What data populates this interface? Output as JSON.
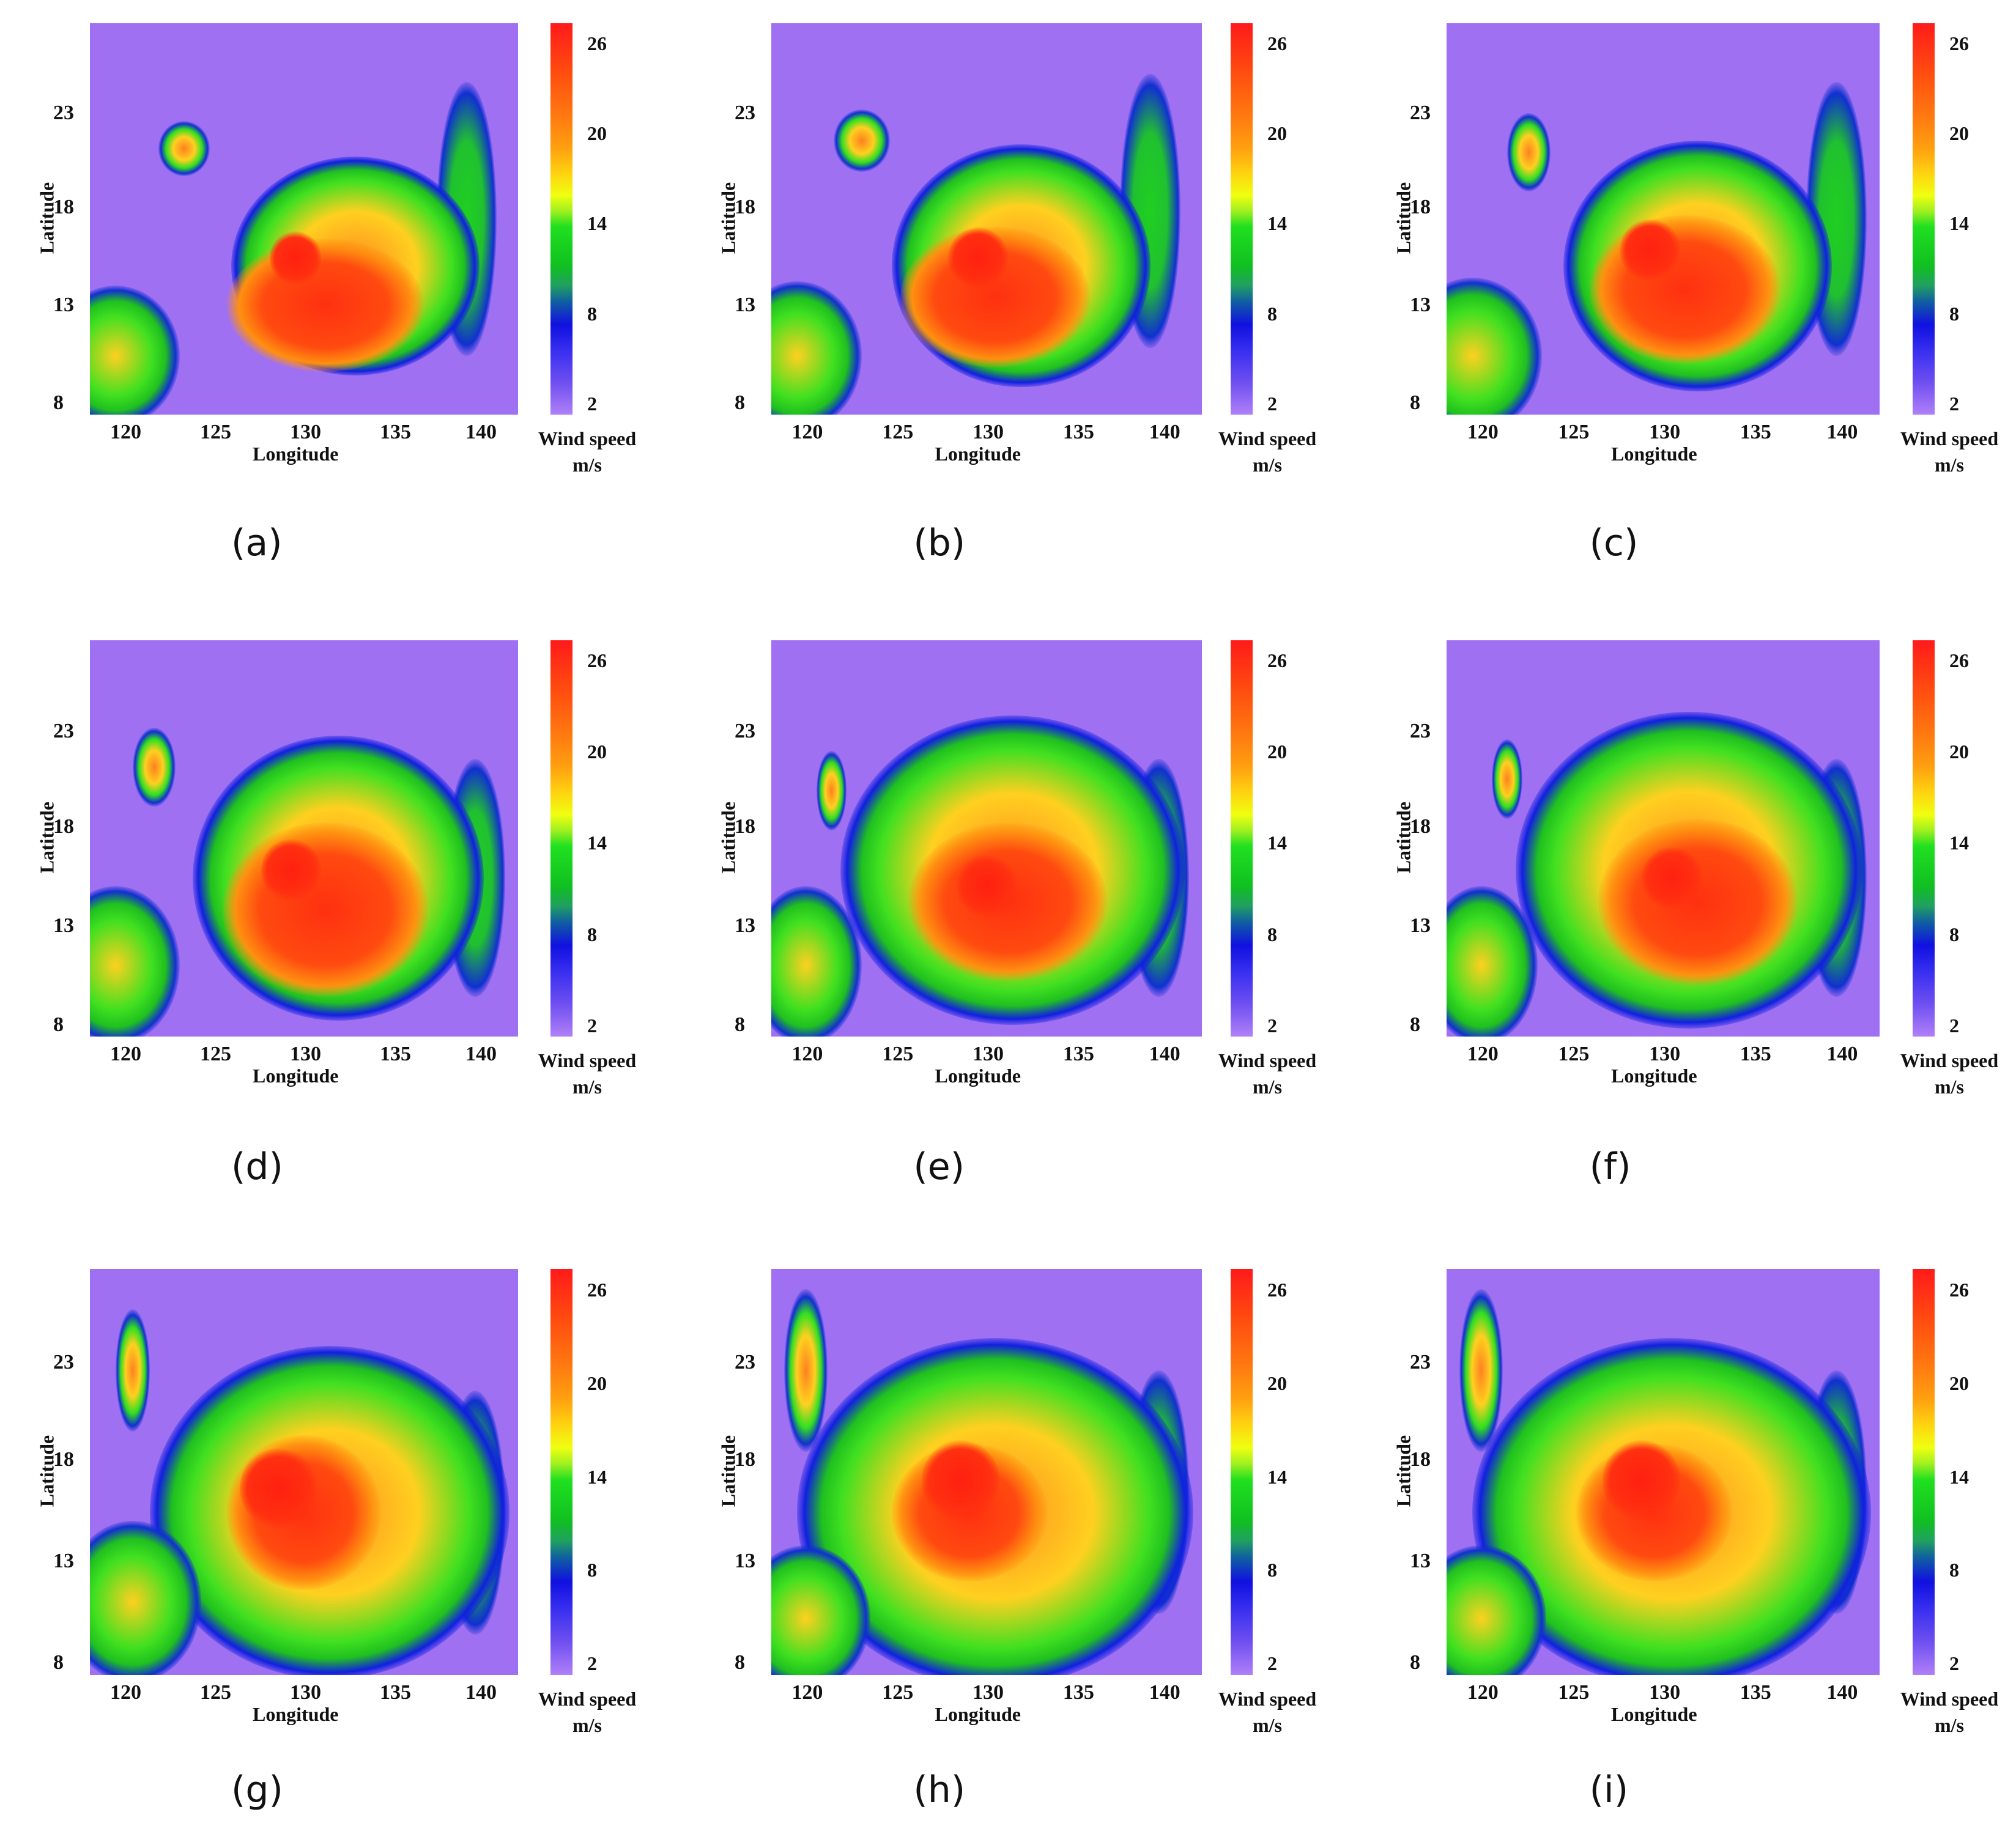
{
  "figure": {
    "colorbar": {
      "label_line1": "Wind speed",
      "label_line2": "m/s",
      "ticks": [
        "26",
        "20",
        "14",
        "8",
        "2"
      ],
      "colors": [
        "#ff1a1a",
        "#ff7a10",
        "#ffd010",
        "#20e020",
        "#1060a0",
        "#1010e0",
        "#b080f8"
      ]
    },
    "axes": {
      "xlabel": "Longitude",
      "ylabel": "Latitude",
      "xticks": [
        "120",
        "125",
        "130",
        "135",
        "140"
      ],
      "yticks": [
        "23",
        "18",
        "13",
        "8"
      ]
    },
    "panels": [
      {
        "label": "(a)"
      },
      {
        "label": "(b)"
      },
      {
        "label": "(c)"
      },
      {
        "label": "(d)"
      },
      {
        "label": "(e)"
      },
      {
        "label": "(f)"
      },
      {
        "label": "(g)"
      },
      {
        "label": "(h)"
      },
      {
        "label": "(i)"
      }
    ]
  },
  "chart_data": [
    {
      "type": "heatmap",
      "panel": "(a)",
      "title": "",
      "xlabel": "Longitude",
      "ylabel": "Latitude",
      "xlim": [
        118,
        141
      ],
      "ylim": [
        7.5,
        27.5
      ],
      "xticks": [
        120,
        125,
        130,
        135,
        140
      ],
      "yticks": [
        8,
        13,
        18,
        23
      ],
      "colorbar_label": "Wind speed m/s",
      "clim": [
        2,
        26
      ],
      "colorbar_ticks": [
        2,
        8,
        14,
        20,
        26
      ],
      "storm_center_approx": [
        130,
        13.5
      ],
      "max_wind_approx": 26
    },
    {
      "type": "heatmap",
      "panel": "(b)",
      "xlabel": "Longitude",
      "ylabel": "Latitude",
      "xlim": [
        118,
        141
      ],
      "ylim": [
        7.5,
        27.5
      ],
      "xticks": [
        120,
        125,
        130,
        135,
        140
      ],
      "yticks": [
        8,
        13,
        18,
        23
      ],
      "colorbar_label": "Wind speed m/s",
      "clim": [
        2,
        26
      ],
      "colorbar_ticks": [
        2,
        8,
        14,
        20,
        26
      ],
      "storm_center_approx": [
        130,
        13
      ],
      "max_wind_approx": 26
    },
    {
      "type": "heatmap",
      "panel": "(c)",
      "xlabel": "Longitude",
      "ylabel": "Latitude",
      "xlim": [
        118,
        141
      ],
      "ylim": [
        7.5,
        27.5
      ],
      "xticks": [
        120,
        125,
        130,
        135,
        140
      ],
      "yticks": [
        8,
        13,
        18,
        23
      ],
      "colorbar_label": "Wind speed m/s",
      "clim": [
        2,
        26
      ],
      "colorbar_ticks": [
        2,
        8,
        14,
        20,
        26
      ],
      "storm_center_approx": [
        130,
        13.5
      ],
      "max_wind_approx": 26
    },
    {
      "type": "heatmap",
      "panel": "(d)",
      "xlabel": "Longitude",
      "ylabel": "Latitude",
      "xlim": [
        118,
        141
      ],
      "ylim": [
        7.5,
        27.5
      ],
      "xticks": [
        120,
        125,
        130,
        135,
        140
      ],
      "yticks": [
        8,
        13,
        18,
        23
      ],
      "colorbar_label": "Wind speed m/s",
      "clim": [
        2,
        26
      ],
      "colorbar_ticks": [
        2,
        8,
        14,
        20,
        26
      ],
      "storm_center_approx": [
        129.5,
        14
      ],
      "max_wind_approx": 26
    },
    {
      "type": "heatmap",
      "panel": "(e)",
      "xlabel": "Longitude",
      "ylabel": "Latitude",
      "xlim": [
        118,
        141
      ],
      "ylim": [
        7.5,
        27.5
      ],
      "xticks": [
        120,
        125,
        130,
        135,
        140
      ],
      "yticks": [
        8,
        13,
        18,
        23
      ],
      "colorbar_label": "Wind speed m/s",
      "clim": [
        2,
        26
      ],
      "colorbar_ticks": [
        2,
        8,
        14,
        20,
        26
      ],
      "storm_center_approx": [
        130,
        14
      ],
      "max_wind_approx": 26
    },
    {
      "type": "heatmap",
      "panel": "(f)",
      "xlabel": "Longitude",
      "ylabel": "Latitude",
      "xlim": [
        118,
        141
      ],
      "ylim": [
        7.5,
        27.5
      ],
      "xticks": [
        120,
        125,
        130,
        135,
        140
      ],
      "yticks": [
        8,
        13,
        18,
        23
      ],
      "colorbar_label": "Wind speed m/s",
      "clim": [
        2,
        26
      ],
      "colorbar_ticks": [
        2,
        8,
        14,
        20,
        26
      ],
      "storm_center_approx": [
        130,
        14
      ],
      "max_wind_approx": 26
    },
    {
      "type": "heatmap",
      "panel": "(g)",
      "xlabel": "Longitude",
      "ylabel": "Latitude",
      "xlim": [
        118,
        141
      ],
      "ylim": [
        7.5,
        27.5
      ],
      "xticks": [
        120,
        125,
        130,
        135,
        140
      ],
      "yticks": [
        8,
        13,
        18,
        23
      ],
      "colorbar_label": "Wind speed m/s",
      "clim": [
        2,
        26
      ],
      "colorbar_ticks": [
        2,
        8,
        14,
        20,
        26
      ],
      "storm_center_approx": [
        129,
        14.5
      ],
      "max_wind_approx": 26
    },
    {
      "type": "heatmap",
      "panel": "(h)",
      "xlabel": "Longitude",
      "ylabel": "Latitude",
      "xlim": [
        118,
        141
      ],
      "ylim": [
        7.5,
        27.5
      ],
      "xticks": [
        120,
        125,
        130,
        135,
        140
      ],
      "yticks": [
        8,
        13,
        18,
        23
      ],
      "colorbar_label": "Wind speed m/s",
      "clim": [
        2,
        26
      ],
      "colorbar_ticks": [
        2,
        8,
        14,
        20,
        26
      ],
      "storm_center_approx": [
        129.5,
        14
      ],
      "max_wind_approx": 26
    },
    {
      "type": "heatmap",
      "panel": "(i)",
      "xlabel": "Longitude",
      "ylabel": "Latitude",
      "xlim": [
        118,
        141
      ],
      "ylim": [
        7.5,
        27.5
      ],
      "xticks": [
        120,
        125,
        130,
        135,
        140
      ],
      "yticks": [
        8,
        13,
        18,
        23
      ],
      "colorbar_label": "Wind speed m/s",
      "clim": [
        2,
        26
      ],
      "colorbar_ticks": [
        2,
        8,
        14,
        20,
        26
      ],
      "storm_center_approx": [
        130,
        14
      ],
      "max_wind_approx": 26
    }
  ]
}
